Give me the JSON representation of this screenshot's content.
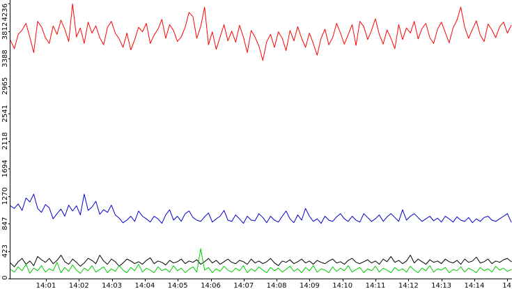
{
  "chart_data": {
    "type": "line",
    "title": "",
    "xlabel": "",
    "ylabel": "",
    "ylim": [
      0,
      4236
    ],
    "grid": false,
    "legend": "none",
    "x_ticks": [
      "14:01",
      "14:02",
      "14:03",
      "14:04",
      "14:05",
      "14:06",
      "14:07",
      "14:08",
      "14:09",
      "14:10",
      "14:11",
      "14:12",
      "14:13",
      "14:14",
      "14"
    ],
    "y_ticks": [
      0,
      423,
      847,
      1270,
      1694,
      2118,
      2541,
      2965,
      3388,
      3812,
      4236
    ],
    "series": [
      {
        "color": "#ff0000",
        "values": [
          3670,
          3540,
          3760,
          3825,
          3930,
          3715,
          3480,
          3960,
          3875,
          3710,
          3620,
          3890,
          3760,
          3980,
          3840,
          3650,
          4230,
          3720,
          3860,
          3620,
          3950,
          3780,
          3890,
          3710,
          3600,
          3870,
          3960,
          3780,
          3690,
          3560,
          3780,
          3520,
          3680,
          3870,
          3800,
          3930,
          3620,
          3750,
          3840,
          3990,
          3700,
          3910,
          3820,
          3650,
          3720,
          3870,
          4100,
          4030,
          3700,
          3880,
          4180,
          3600,
          3800,
          3530,
          3720,
          3910,
          3660,
          3810,
          3640,
          3900,
          3720,
          3480,
          3820,
          3720,
          3580,
          3360,
          3650,
          3760,
          3560,
          3800,
          3700,
          3510,
          3820,
          3660,
          3880,
          3700,
          3560,
          3780,
          3620,
          3440,
          3700,
          3840,
          3600,
          3710,
          3930,
          3780,
          3610,
          3760,
          3910,
          3590,
          3960,
          3880,
          3680,
          3820,
          4000,
          3760,
          3610,
          3830,
          3700,
          3540,
          3910,
          3680,
          3860,
          3780,
          3960,
          3690,
          3850,
          3930,
          3710,
          3620,
          3840,
          3950,
          3790,
          3630,
          3860,
          3980,
          4180,
          3870,
          3700,
          3840,
          3970,
          3750,
          3650,
          3920,
          3830,
          3710,
          3880,
          3950,
          3780,
          3900
        ]
      },
      {
        "color": "#0000cc",
        "values": [
          1120,
          1080,
          1150,
          1050,
          1240,
          1180,
          1300,
          1080,
          1020,
          1140,
          1090,
          920,
          1000,
          1070,
          960,
          1130,
          1040,
          1120,
          980,
          1300,
          1050,
          1100,
          1190,
          990,
          1060,
          1020,
          1130,
          980,
          930,
          860,
          900,
          960,
          880,
          1040,
          960,
          920,
          870,
          960,
          920,
          850,
          980,
          1060,
          900,
          960,
          880,
          1000,
          1040,
          940,
          900,
          880,
          950,
          1010,
          870,
          920,
          960,
          1050,
          900,
          880,
          980,
          920,
          850,
          960,
          900,
          890,
          1000,
          940,
          860,
          960,
          900,
          870,
          960,
          1040,
          920,
          860,
          980,
          900,
          1080,
          960,
          880,
          920,
          850,
          960,
          900,
          880,
          950,
          1000,
          920,
          880,
          960,
          900,
          870,
          1000,
          940,
          880,
          920,
          980,
          880,
          950,
          1000,
          940,
          880,
          1060,
          900,
          960,
          1000,
          940,
          880,
          920,
          960,
          890,
          930,
          870,
          960,
          920,
          870,
          950,
          900,
          880,
          940,
          860,
          920,
          880,
          940,
          960,
          900,
          880,
          920,
          960,
          1000,
          870
        ]
      },
      {
        "color": "#000000",
        "values": [
          240,
          180,
          260,
          310,
          220,
          270,
          200,
          340,
          290,
          250,
          310,
          230,
          280,
          360,
          260,
          220,
          300,
          250,
          190,
          240,
          310,
          280,
          230,
          360,
          270,
          220,
          300,
          260,
          190,
          240,
          300,
          270,
          230,
          260,
          220,
          280,
          320,
          230,
          270,
          250,
          210,
          280,
          240,
          260,
          300,
          230,
          270,
          250,
          290,
          220,
          260,
          310,
          240,
          280,
          220,
          260,
          300,
          250,
          230,
          280,
          260,
          220,
          300,
          240,
          270,
          230,
          260,
          310,
          240,
          200,
          270,
          250,
          290,
          230,
          260,
          300,
          240,
          270,
          220,
          280,
          250,
          230,
          270,
          300,
          240,
          260,
          220,
          280,
          310,
          250,
          230,
          260,
          290,
          240,
          270,
          220,
          300,
          260,
          340,
          250,
          280,
          230,
          270,
          360,
          240,
          300,
          260,
          220,
          290,
          250,
          270,
          230,
          300,
          260,
          240,
          280,
          220,
          300,
          250,
          270,
          330,
          240,
          260,
          300,
          230,
          270,
          250,
          290,
          310,
          260
        ]
      },
      {
        "color": "#00cc00",
        "values": [
          140,
          100,
          180,
          120,
          220,
          80,
          160,
          120,
          200,
          100,
          150,
          120,
          250,
          90,
          170,
          110,
          210,
          130,
          80,
          160,
          120,
          200,
          100,
          140,
          180,
          90,
          150,
          110,
          200,
          130,
          90,
          170,
          120,
          220,
          100,
          160,
          130,
          90,
          180,
          120,
          150,
          100,
          200,
          120,
          160,
          90,
          140,
          180,
          100,
          460,
          130,
          170,
          90,
          150,
          110,
          190,
          130,
          100,
          160,
          120,
          200,
          90,
          150,
          110,
          180,
          130,
          90,
          170,
          120,
          160,
          100,
          140,
          190,
          110,
          150,
          90,
          170,
          120,
          200,
          100,
          150,
          130,
          90,
          180,
          110,
          160,
          120,
          200,
          100,
          140,
          170,
          90,
          150,
          120,
          190,
          100,
          160,
          130,
          90,
          170,
          120,
          150,
          100,
          190,
          130,
          90,
          160,
          120,
          200,
          100,
          150,
          130,
          170,
          90,
          140,
          120,
          180,
          100,
          160,
          130,
          90,
          170,
          120,
          150,
          100,
          190,
          130,
          160,
          110,
          140
        ]
      }
    ]
  }
}
